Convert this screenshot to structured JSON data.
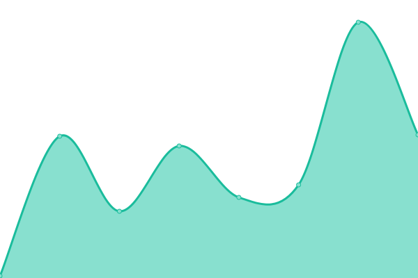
{
  "chart_data": {
    "type": "area",
    "title": "",
    "xlabel": "",
    "ylabel": "",
    "x": [
      0,
      1,
      2,
      3,
      4,
      5,
      6,
      7
    ],
    "values": [
      0.75,
      51,
      24,
      47.5,
      29,
      33.5,
      92,
      51.5
    ],
    "ylim": [
      0,
      100
    ],
    "smooth": true,
    "grid": false,
    "axes_visible": false,
    "legend": "none",
    "colors": {
      "line": "#1abc9c",
      "fill": "#88e0cf",
      "point_fill": "#88e0cf"
    }
  }
}
